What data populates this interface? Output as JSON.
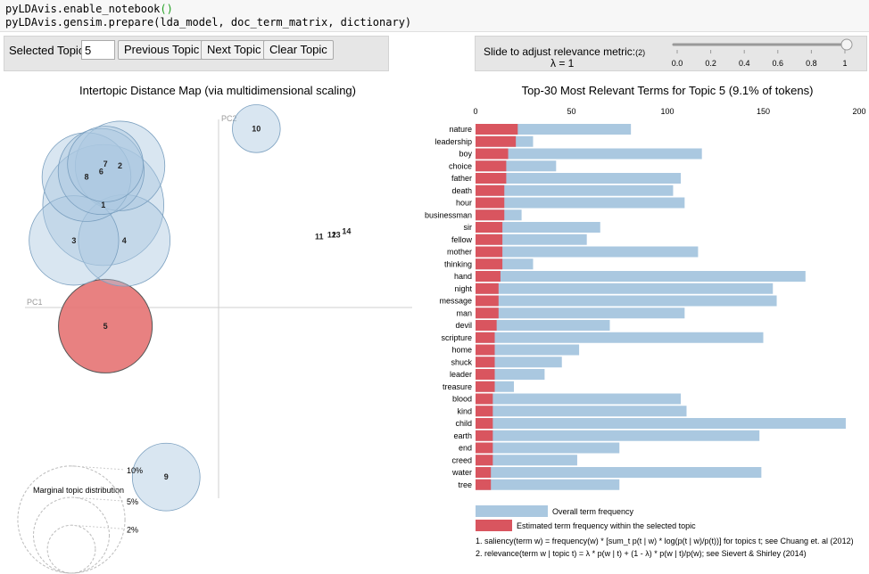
{
  "code": {
    "line1_prefix": "pyLDAvis.enable_notebook",
    "line1_parens": "()",
    "line2": "pyLDAvis.gensim.prepare(lda_model, doc_term_matrix, dictionary)"
  },
  "controls": {
    "selected_topic_label": "Selected Topic:",
    "selected_topic_value": "5",
    "prev_label": "Previous Topic",
    "next_label": "Next Topic",
    "clear_label": "Clear Topic",
    "slider_label": "Slide to adjust relevance metric:",
    "slider_footnote_ref": "(2)",
    "lambda_label": "λ = 1",
    "lambda_value": 1,
    "slider_ticks": [
      "0.0",
      "0.2",
      "0.4",
      "0.6",
      "0.8",
      "1"
    ]
  },
  "colors": {
    "blue_fill": "#aac8e0",
    "blue_stroke": "#7a9fbf",
    "selected_fill": "#e57373",
    "selected_stroke": "#555555",
    "bar_overall": "#aac8e0",
    "bar_topic": "#d9555f"
  },
  "chart_data": [
    {
      "type": "scatter",
      "title": "Intertopic Distance Map (via multidimensional scaling)",
      "xlabel": "PC1",
      "ylabel": "PC2",
      "selected_topic": "5",
      "points": [
        {
          "label": "1",
          "x": -0.55,
          "y": 0.55,
          "size": 11.5
        },
        {
          "label": "2",
          "x": -0.47,
          "y": 0.76,
          "size": 6.3
        },
        {
          "label": "3",
          "x": -0.69,
          "y": 0.36,
          "size": 6.3
        },
        {
          "label": "4",
          "x": -0.45,
          "y": 0.36,
          "size": 6.6
        },
        {
          "label": "5",
          "x": -0.54,
          "y": -0.1,
          "size": 6.9
        },
        {
          "label": "6",
          "x": -0.56,
          "y": 0.73,
          "size": 5.8
        },
        {
          "label": "7",
          "x": -0.54,
          "y": 0.77,
          "size": 4.5
        },
        {
          "label": "8",
          "x": -0.63,
          "y": 0.7,
          "size": 6.2
        },
        {
          "label": "9",
          "x": -0.25,
          "y": -0.91,
          "size": 3.6
        },
        {
          "label": "10",
          "x": 0.18,
          "y": 0.96,
          "size": 1.8
        },
        {
          "label": "11",
          "x": 0.48,
          "y": 0.38,
          "size": 0.01
        },
        {
          "label": "12",
          "x": 0.54,
          "y": 0.39,
          "size": 0.01
        },
        {
          "label": "13",
          "x": 0.56,
          "y": 0.39,
          "size": 0.01
        },
        {
          "label": "14",
          "x": 0.61,
          "y": 0.41,
          "size": 0.01
        }
      ],
      "legend": {
        "title": "Marginal topic distribution",
        "items": [
          "2%",
          "5%",
          "10%"
        ]
      }
    },
    {
      "type": "bar",
      "title": "Top-30 Most Relevant Terms for Topic 5 (9.1% of tokens)",
      "xlim": [
        0,
        200
      ],
      "xticks": [
        "0",
        "50",
        "100",
        "150",
        "200"
      ],
      "categories": [
        "nature",
        "leadership",
        "boy",
        "choice",
        "father",
        "death",
        "hour",
        "businessman",
        "sir",
        "fellow",
        "mother",
        "thinking",
        "hand",
        "night",
        "message",
        "man",
        "devil",
        "scripture",
        "home",
        "shuck",
        "leader",
        "treasure",
        "blood",
        "kind",
        "child",
        "earth",
        "end",
        "creed",
        "water",
        "tree"
      ],
      "series": [
        {
          "name": "Overall term frequency",
          "values": [
            81,
            30,
            118,
            42,
            107,
            103,
            109,
            24,
            65,
            58,
            116,
            30,
            172,
            155,
            157,
            109,
            70,
            150,
            54,
            45,
            36,
            20,
            107,
            110,
            193,
            148,
            75,
            53,
            149,
            75
          ]
        },
        {
          "name": "Estimated term frequency within the selected topic",
          "values": [
            22,
            21,
            17,
            16,
            16,
            15,
            15,
            15,
            14,
            14,
            14,
            14,
            13,
            12,
            12,
            12,
            11,
            10,
            10,
            10,
            10,
            10,
            9,
            9,
            9,
            9,
            9,
            9,
            8,
            8
          ]
        }
      ],
      "footnotes": [
        "1. saliency(term w) = frequency(w) * [sum_t p(t | w) * log(p(t | w)/p(t))] for topics t; see Chuang et. al (2012)",
        "2. relevance(term w | topic t) = λ * p(w | t) + (1 - λ) * p(w | t)/p(w); see Sievert & Shirley (2014)"
      ]
    }
  ]
}
